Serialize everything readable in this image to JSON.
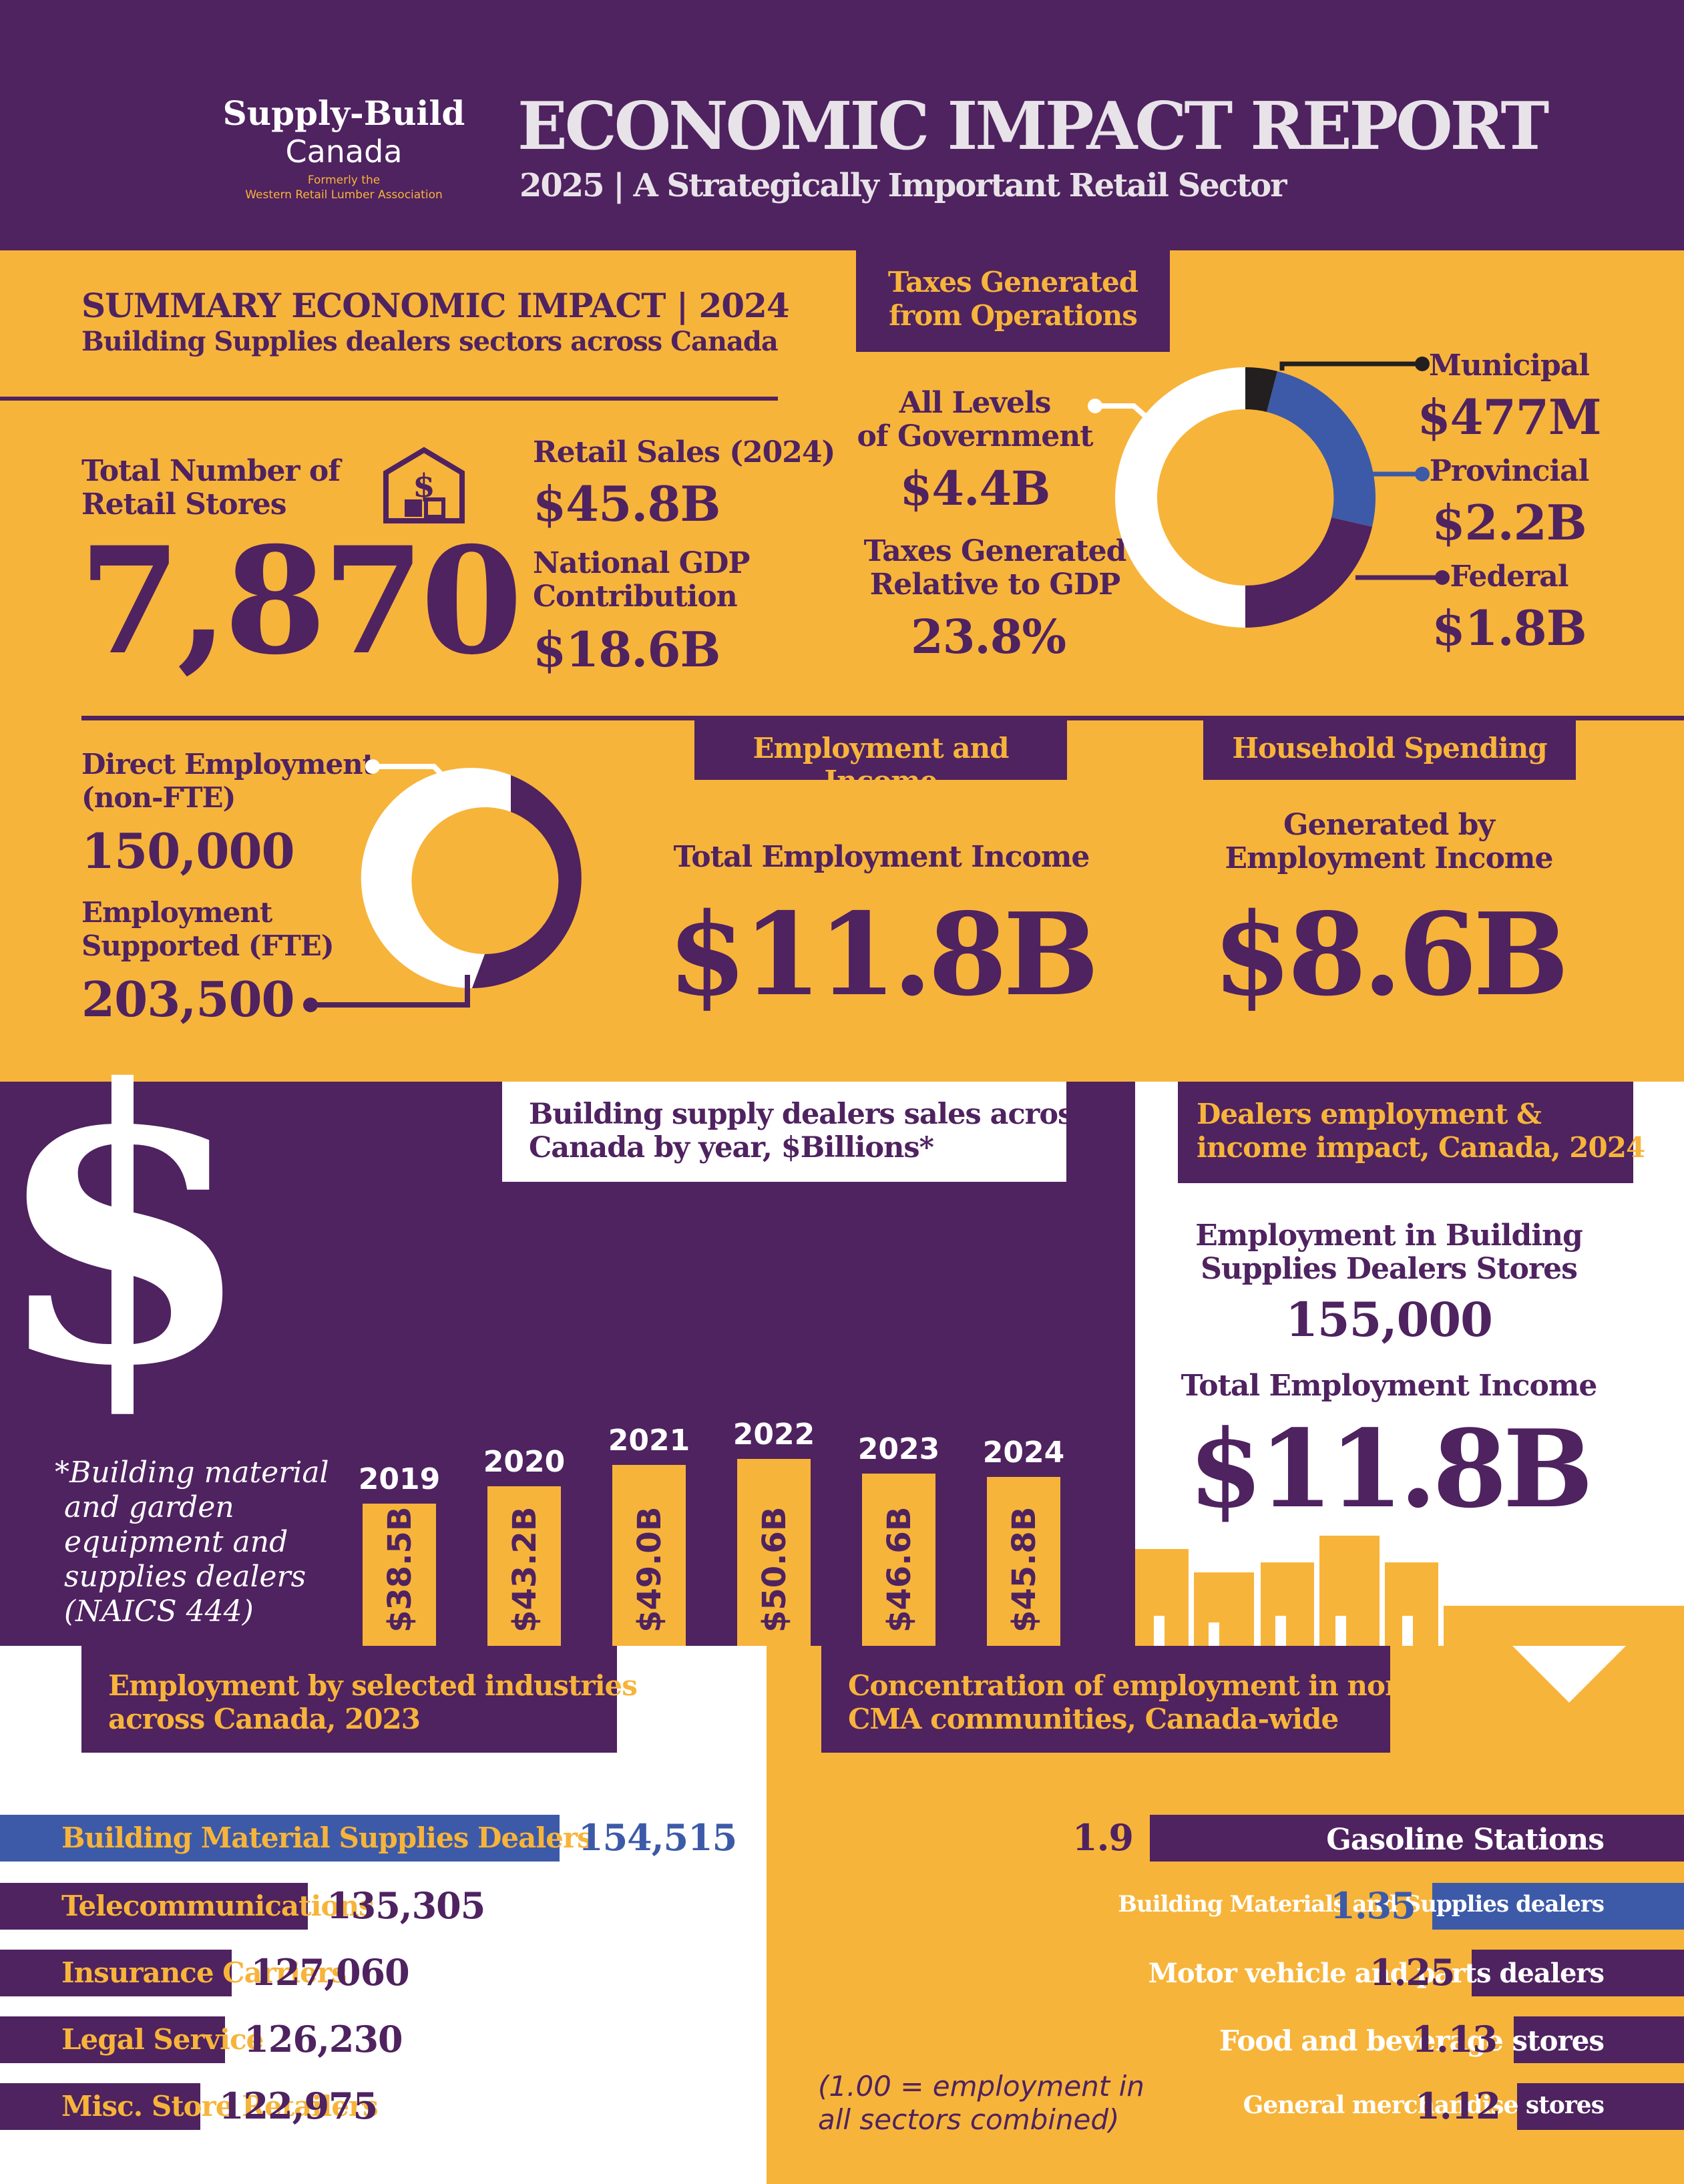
{
  "header": {
    "logo_line1": "Supply-Build",
    "logo_line2": "Canada",
    "logo_formerly1": "Formerly the",
    "logo_formerly2": "Western Retail Lumber Association",
    "title": "ECONOMIC IMPACT REPORT",
    "subtitle": "2025 | A Strategically Important Retail Sector"
  },
  "summary": {
    "heading": "SUMMARY ECONOMIC IMPACT | 2024",
    "subheading": "Building Supplies dealers sectors across Canada",
    "stores_label_1": "Total Number of",
    "stores_label_2": "Retail Stores",
    "stores_value": "7,870",
    "retail_sales_label": "Retail Sales (2024)",
    "retail_sales_value": "$45.8B",
    "gdp_label_1": "National GDP",
    "gdp_label_2": "Contribution",
    "gdp_value": "$18.6B"
  },
  "taxes": {
    "heading_1": "Taxes Generated",
    "heading_2": "from Operations",
    "all_label_1": "All Levels",
    "all_label_2": "of Government",
    "all_value": "$4.4B",
    "gdp_label_1": "Taxes Generated",
    "gdp_label_2": "Relative to GDP",
    "gdp_value": "23.8%",
    "municipal_label": "Municipal",
    "municipal_value": "$477M",
    "provincial_label": "Provincial",
    "provincial_value": "$2.2B",
    "federal_label": "Federal",
    "federal_value": "$1.8B",
    "colors": {
      "municipal": "#231f20",
      "provincial": "#3d5aa8",
      "federal": "#4f2260",
      "rest": "#ffffff"
    }
  },
  "employment": {
    "direct_label_1": "Direct Employment",
    "direct_label_2": "(non-FTE)",
    "direct_value": "150,000",
    "supported_label_1": "Employment",
    "supported_label_2": "Supported (FTE)",
    "supported_value": "203,500",
    "income_heading": "Employment and Income",
    "income_label": "Total Employment Income",
    "income_value": "$11.8B",
    "household_heading": "Household Spending",
    "household_label_1": "Generated by",
    "household_label_2": "Employment Income",
    "household_value": "$8.6B"
  },
  "sales_chart": {
    "heading_1": "Building supply dealers sales across",
    "heading_2": "Canada by year, $Billions*",
    "footnote_1": "*Building material",
    "footnote_2": "and garden",
    "footnote_3": "equipment and",
    "footnote_4": "supplies dealers",
    "footnote_5": "(NAICS 444)",
    "dollar_glyph": "$"
  },
  "chart_data": {
    "type": "bar",
    "categories": [
      "2019",
      "2020",
      "2021",
      "2022",
      "2023",
      "2024"
    ],
    "values": [
      38.5,
      43.2,
      49.0,
      50.6,
      46.6,
      45.8
    ],
    "labels": [
      "$38.5B",
      "$43.2B",
      "$49.0B",
      "$50.6B",
      "$46.6B",
      "$45.8B"
    ],
    "title": "Building supply dealers sales across Canada by year, $Billions*",
    "ylim": [
      0,
      55
    ]
  },
  "dealers": {
    "heading_1": "Dealers employment &",
    "heading_2": "income impact, Canada, 2024",
    "emp_label_1": "Employment in Building",
    "emp_label_2": "Supplies Dealers Stores",
    "emp_value": "155,000",
    "income_label": "Total Employment Income",
    "income_value": "$11.8B"
  },
  "industries": {
    "heading_1": "Employment by selected industries",
    "heading_2": "across Canada, 2023",
    "rows": [
      {
        "name": "Building Material Supplies Dealers",
        "value": "154,515",
        "num": 154515
      },
      {
        "name": "Telecommunications",
        "value": "135,305",
        "num": 135305
      },
      {
        "name": "Insurance Carriers",
        "value": "127,060",
        "num": 127060
      },
      {
        "name": "Legal Service",
        "value": "126,230",
        "num": 126230
      },
      {
        "name": "Misc. Store Retailers",
        "value": "122,975",
        "num": 122975
      }
    ]
  },
  "concentration": {
    "heading_1": "Concentration of employment in non-",
    "heading_2": "CMA communities, Canada-wide",
    "note_1": "(1.00 = employment in",
    "note_2": "all sectors combined)",
    "rows": [
      {
        "name": "Gasoline Stations",
        "value": "1.9",
        "num": 1.9
      },
      {
        "name": "Building Materials and Supplies dealers",
        "value": "1.35",
        "num": 1.35
      },
      {
        "name": "Motor vehicle and parts dealers",
        "value": "1.25",
        "num": 1.25
      },
      {
        "name": "Food and beverage stores",
        "value": "1.13",
        "num": 1.13
      },
      {
        "name": "General merchandise stores",
        "value": "1.12",
        "num": 1.12
      }
    ]
  }
}
